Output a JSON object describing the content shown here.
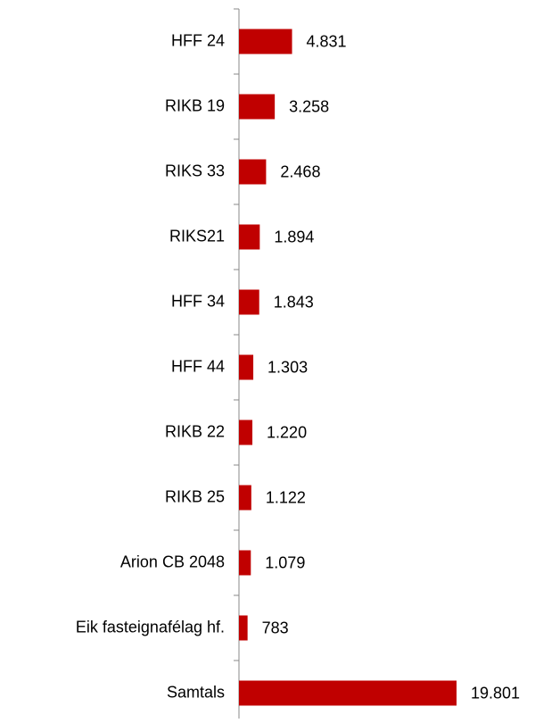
{
  "chart_data": {
    "type": "bar",
    "orientation": "horizontal",
    "categories": [
      "HFF 24",
      "RIKB 19",
      "RIKS 33",
      "RIKS21",
      "HFF 34",
      "HFF 44",
      "RIKB 22",
      "RIKB 25",
      "Arion CB 2048",
      "Eik fasteignafélag hf.",
      "Samtals"
    ],
    "values": [
      4831,
      3258,
      2468,
      1894,
      1843,
      1303,
      1220,
      1122,
      1079,
      783,
      19801
    ],
    "value_labels": [
      "4.831",
      "3.258",
      "2.468",
      "1.894",
      "1.843",
      "1.303",
      "1.220",
      "1.122",
      "1.079",
      "783",
      "19.801"
    ],
    "color": "#c00000"
  }
}
